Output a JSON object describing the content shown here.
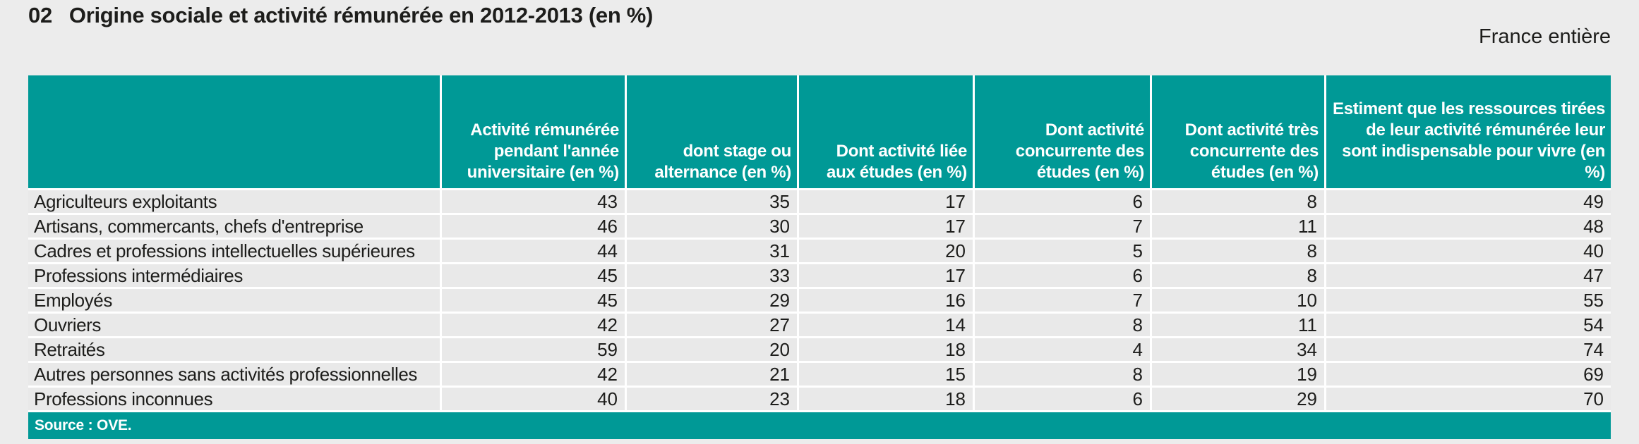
{
  "page": {
    "title_number": "02",
    "title": "Origine sociale et activité rémunérée en 2012-2013 (en %)",
    "region_label": "France entière"
  },
  "colors": {
    "teal": "#009996",
    "page_bg": "#ECECEC",
    "row_bg": "#E9E9E9",
    "header_text": "#FFFFFF",
    "body_text": "#1D1D1B"
  },
  "chart_data": {
    "type": "table",
    "title": "02 Origine sociale et activité rémunérée en 2012-2013 (en %)",
    "note": "France entière",
    "source": "Source : OVE.",
    "columns": [
      "",
      "Activité rémunérée pendant l'année universitaire (en %)",
      "dont stage ou alternance (en %)",
      "Dont activité liée aux études (en %)",
      "Dont activité concurrente des études (en %)",
      "Dont activité très concurrente des études (en %)",
      "Estiment que les ressources tirées de leur activité rémunérée leur sont indispensable pour vivre (en %)"
    ],
    "rows": [
      {
        "label": "Agriculteurs exploitants",
        "values": [
          43,
          35,
          17,
          6,
          8,
          49
        ]
      },
      {
        "label": "Artisans, commercants, chefs d'entreprise",
        "values": [
          46,
          30,
          17,
          7,
          11,
          48
        ]
      },
      {
        "label": "Cadres et professions intellectuelles supérieures",
        "values": [
          44,
          31,
          20,
          5,
          8,
          40
        ]
      },
      {
        "label": "Professions intermédiaires",
        "values": [
          45,
          33,
          17,
          6,
          8,
          47
        ]
      },
      {
        "label": "Employés",
        "values": [
          45,
          29,
          16,
          7,
          10,
          55
        ]
      },
      {
        "label": "Ouvriers",
        "values": [
          42,
          27,
          14,
          8,
          11,
          54
        ]
      },
      {
        "label": "Retraités",
        "values": [
          59,
          20,
          18,
          4,
          34,
          74
        ]
      },
      {
        "label": "Autres personnes sans activités professionnelles",
        "values": [
          42,
          21,
          15,
          8,
          19,
          69
        ]
      },
      {
        "label": "Professions inconnues",
        "values": [
          40,
          23,
          18,
          6,
          29,
          70
        ]
      }
    ]
  }
}
